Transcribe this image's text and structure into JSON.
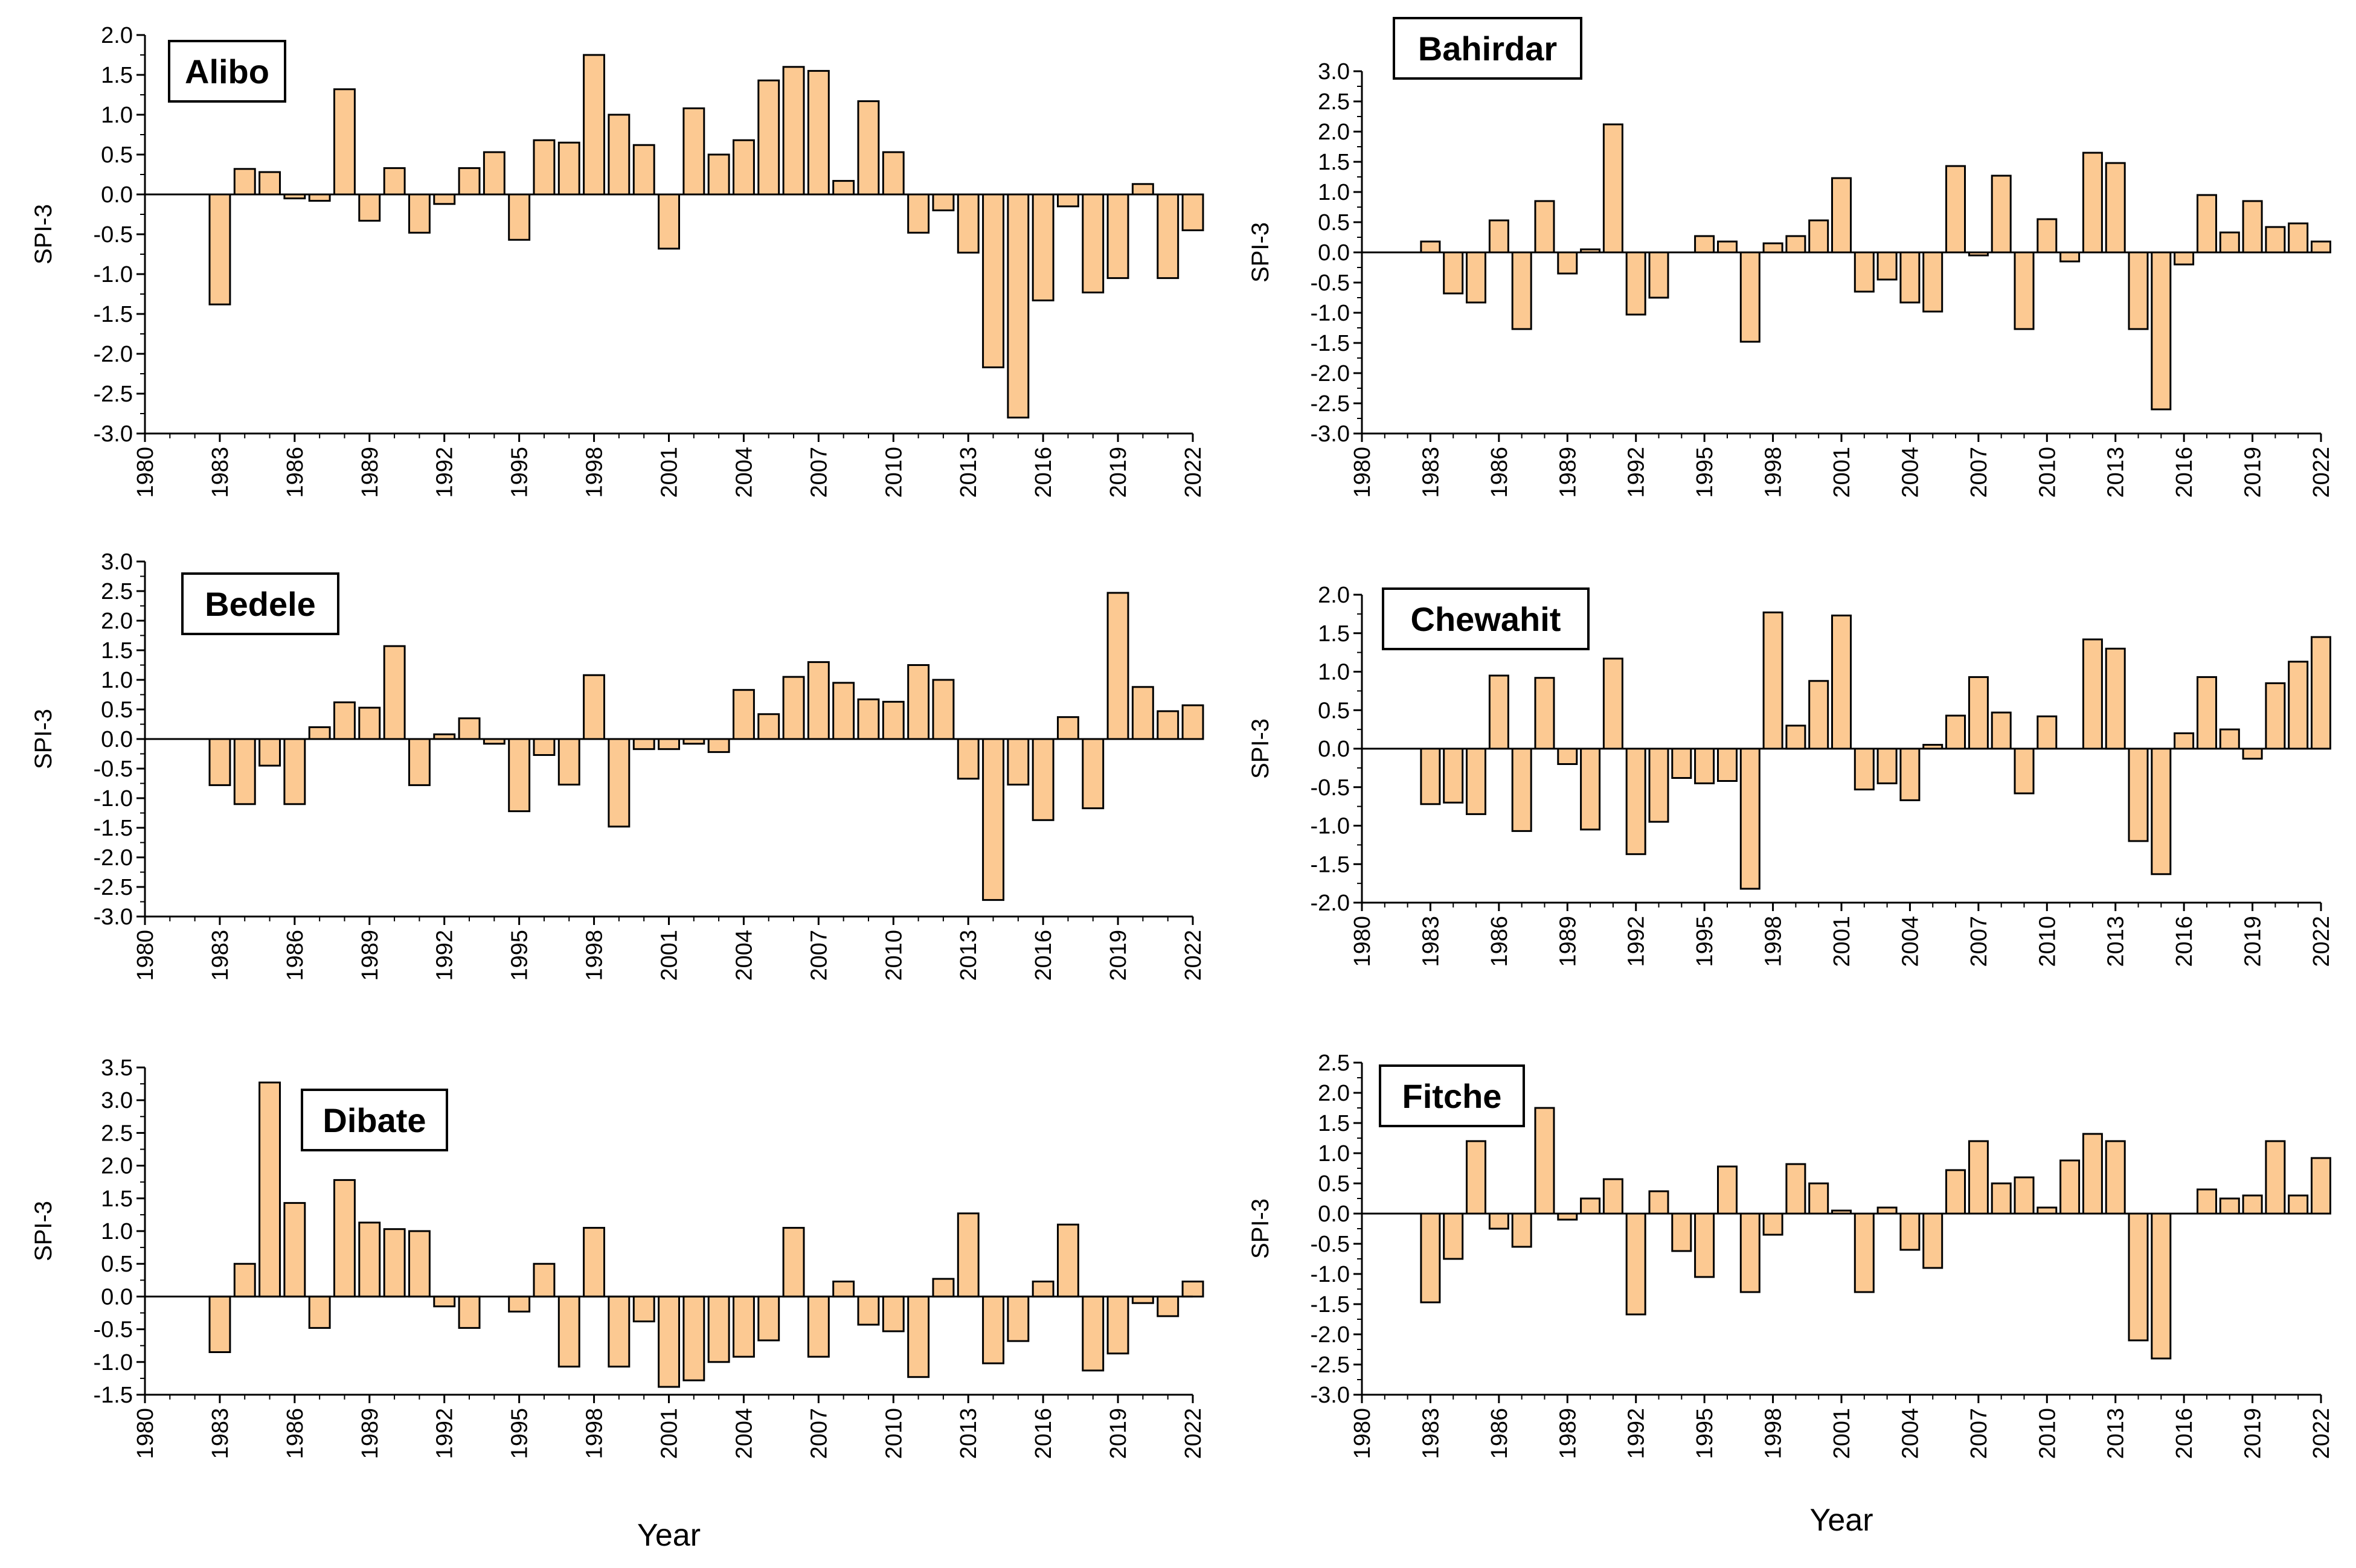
{
  "figure": {
    "bar_fill": "#fcc992",
    "bar_stroke": "#000000"
  },
  "chart_data": [
    {
      "type": "bar",
      "station": "Alibo",
      "ylabel": "SPI-3",
      "xlabel": "",
      "xlim": [
        1980,
        2022
      ],
      "ylim": [
        -3.0,
        2.0
      ],
      "yticks": [
        "-3.0",
        "-2.5",
        "-2.0",
        "-1.5",
        "-1.0",
        "-0.5",
        "0.0",
        "0.5",
        "1.0",
        "1.5",
        "2.0"
      ],
      "xticks": [
        "1980",
        "1983",
        "1986",
        "1989",
        "1992",
        "1995",
        "1998",
        "2001",
        "2004",
        "2007",
        "2010",
        "2013",
        "2016",
        "2019",
        "2022"
      ],
      "years": [
        1983,
        1984,
        1985,
        1986,
        1987,
        1988,
        1989,
        1990,
        1991,
        1992,
        1993,
        1994,
        1995,
        1996,
        1997,
        1998,
        1999,
        2000,
        2001,
        2002,
        2003,
        2004,
        2005,
        2006,
        2007,
        2008,
        2009,
        2010,
        2011,
        2012,
        2013,
        2014,
        2015,
        2016,
        2017,
        2018,
        2019,
        2020,
        2021,
        2022
      ],
      "values": [
        -1.38,
        0.32,
        0.28,
        -0.05,
        -0.08,
        1.32,
        -0.33,
        0.33,
        -0.48,
        -0.12,
        0.33,
        0.53,
        -0.57,
        0.68,
        0.65,
        1.75,
        1.0,
        0.62,
        -0.68,
        1.08,
        0.5,
        0.68,
        1.43,
        1.6,
        1.55,
        0.17,
        1.17,
        0.53,
        -0.48,
        -0.2,
        -0.73,
        -2.17,
        -2.8,
        -1.33,
        -0.15,
        -1.23,
        -1.05,
        0.13,
        -1.05,
        -0.45
      ]
    },
    {
      "type": "bar",
      "station": "Bahirdar",
      "ylabel": "SPI-3",
      "xlabel": "",
      "xlim": [
        1980,
        2022
      ],
      "ylim": [
        -3.0,
        3.0
      ],
      "yticks": [
        "-3.0",
        "-2.5",
        "-2.0",
        "-1.5",
        "-1.0",
        "-0.5",
        "0.0",
        "0.5",
        "1.0",
        "1.5",
        "2.0",
        "2.5",
        "3.0"
      ],
      "xticks": [
        "1980",
        "1983",
        "1986",
        "1989",
        "1992",
        "1995",
        "1998",
        "2001",
        "2004",
        "2007",
        "2010",
        "2013",
        "2016",
        "2019",
        "2022"
      ],
      "years": [
        1983,
        1984,
        1985,
        1986,
        1987,
        1988,
        1989,
        1990,
        1991,
        1992,
        1993,
        1994,
        1995,
        1996,
        1997,
        1998,
        1999,
        2000,
        2001,
        2002,
        2003,
        2004,
        2005,
        2006,
        2007,
        2008,
        2009,
        2010,
        2011,
        2012,
        2013,
        2014,
        2015,
        2016,
        2017,
        2018,
        2019,
        2020,
        2021,
        2022
      ],
      "values": [
        0.18,
        -0.68,
        -0.83,
        0.53,
        -1.27,
        0.85,
        -0.35,
        0.05,
        2.12,
        -1.03,
        -0.75,
        0.0,
        0.27,
        0.18,
        -1.48,
        0.15,
        0.27,
        0.53,
        1.23,
        -0.65,
        -0.45,
        -0.83,
        -0.98,
        1.43,
        -0.05,
        1.27,
        -1.27,
        0.55,
        -0.15,
        1.65,
        1.48,
        -1.27,
        -2.6,
        -0.2,
        0.95,
        0.33,
        0.85,
        0.42,
        0.48,
        0.18
      ]
    },
    {
      "type": "bar",
      "station": "Bedele",
      "ylabel": "SPI-3",
      "xlabel": "",
      "xlim": [
        1980,
        2022
      ],
      "ylim": [
        -3.0,
        3.0
      ],
      "yticks": [
        "-3.0",
        "-2.5",
        "-2.0",
        "-1.5",
        "-1.0",
        "-0.5",
        "0.0",
        "0.5",
        "1.0",
        "1.5",
        "2.0",
        "2.5",
        "3.0"
      ],
      "xticks": [
        "1980",
        "1983",
        "1986",
        "1989",
        "1992",
        "1995",
        "1998",
        "2001",
        "2004",
        "2007",
        "2010",
        "2013",
        "2016",
        "2019",
        "2022"
      ],
      "years": [
        1983,
        1984,
        1985,
        1986,
        1987,
        1988,
        1989,
        1990,
        1991,
        1992,
        1993,
        1994,
        1995,
        1996,
        1997,
        1998,
        1999,
        2000,
        2001,
        2002,
        2003,
        2004,
        2005,
        2006,
        2007,
        2008,
        2009,
        2010,
        2011,
        2012,
        2013,
        2014,
        2015,
        2016,
        2017,
        2018,
        2019,
        2020,
        2021,
        2022
      ],
      "values": [
        -0.78,
        -1.1,
        -0.45,
        -1.1,
        0.2,
        0.62,
        0.53,
        1.57,
        -0.78,
        0.08,
        0.35,
        -0.08,
        -1.22,
        -0.27,
        -0.77,
        1.08,
        -1.48,
        -0.17,
        -0.17,
        -0.08,
        -0.22,
        0.83,
        0.42,
        1.05,
        1.3,
        0.95,
        0.67,
        0.63,
        1.25,
        1.0,
        -0.67,
        -2.72,
        -0.77,
        -1.37,
        0.37,
        -1.17,
        2.47,
        0.88,
        0.47,
        0.57
      ]
    },
    {
      "type": "bar",
      "station": "Chewahit",
      "ylabel": "SPI-3",
      "xlabel": "",
      "xlim": [
        1980,
        2022
      ],
      "ylim": [
        -2.0,
        2.0
      ],
      "yticks": [
        "-2.0",
        "-1.5",
        "-1.0",
        "-0.5",
        "0.0",
        "0.5",
        "1.0",
        "1.5",
        "2.0"
      ],
      "xticks": [
        "1980",
        "1983",
        "1986",
        "1989",
        "1992",
        "1995",
        "1998",
        "2001",
        "2004",
        "2007",
        "2010",
        "2013",
        "2016",
        "2019",
        "2022"
      ],
      "years": [
        1983,
        1984,
        1985,
        1986,
        1987,
        1988,
        1989,
        1990,
        1991,
        1992,
        1993,
        1994,
        1995,
        1996,
        1997,
        1998,
        1999,
        2000,
        2001,
        2002,
        2003,
        2004,
        2005,
        2006,
        2007,
        2008,
        2009,
        2010,
        2011,
        2012,
        2013,
        2014,
        2015,
        2016,
        2017,
        2018,
        2019,
        2020,
        2021,
        2022
      ],
      "values": [
        -0.72,
        -0.7,
        -0.85,
        0.95,
        -1.07,
        0.92,
        -0.2,
        -1.05,
        1.17,
        -1.37,
        -0.95,
        -0.38,
        -0.45,
        -0.42,
        -1.82,
        1.77,
        0.3,
        0.88,
        1.73,
        -0.53,
        -0.45,
        -0.67,
        0.05,
        0.43,
        0.93,
        0.47,
        -0.58,
        0.42,
        0.0,
        1.42,
        1.3,
        -1.2,
        -1.63,
        0.2,
        0.93,
        0.25,
        -0.13,
        0.85,
        1.13,
        1.45
      ]
    },
    {
      "type": "bar",
      "station": "Dibate",
      "ylabel": "SPI-3",
      "xlabel": "Year",
      "xlim": [
        1980,
        2022
      ],
      "ylim": [
        -1.5,
        3.5
      ],
      "yticks": [
        "-1.5",
        "-1.0",
        "-0.5",
        "0.0",
        "0.5",
        "1.0",
        "1.5",
        "2.0",
        "2.5",
        "3.0",
        "3.5"
      ],
      "xticks": [
        "1980",
        "1983",
        "1986",
        "1989",
        "1992",
        "1995",
        "1998",
        "2001",
        "2004",
        "2007",
        "2010",
        "2013",
        "2016",
        "2019",
        "2022"
      ],
      "years": [
        1983,
        1984,
        1985,
        1986,
        1987,
        1988,
        1989,
        1990,
        1991,
        1992,
        1993,
        1994,
        1995,
        1996,
        1997,
        1998,
        1999,
        2000,
        2001,
        2002,
        2003,
        2004,
        2005,
        2006,
        2007,
        2008,
        2009,
        2010,
        2011,
        2012,
        2013,
        2014,
        2015,
        2016,
        2017,
        2018,
        2019,
        2020,
        2021,
        2022
      ],
      "values": [
        -0.85,
        0.5,
        3.27,
        1.43,
        -0.48,
        1.78,
        1.13,
        1.03,
        1.0,
        -0.15,
        -0.48,
        0.0,
        -0.23,
        0.5,
        -1.07,
        1.05,
        -1.07,
        -0.38,
        -1.38,
        -1.28,
        -1.0,
        -0.92,
        -0.67,
        1.05,
        -0.92,
        0.23,
        -0.43,
        -0.53,
        -1.23,
        0.27,
        1.27,
        -1.02,
        -0.68,
        0.23,
        1.1,
        -1.13,
        -0.87,
        -0.1,
        -0.3,
        0.23
      ]
    },
    {
      "type": "bar",
      "station": "Fitche",
      "ylabel": "SPI-3",
      "xlabel": "Year",
      "xlim": [
        1980,
        2022
      ],
      "ylim": [
        -3.0,
        2.5
      ],
      "yticks": [
        "-3.0",
        "-2.5",
        "-2.0",
        "-1.5",
        "-1.0",
        "-0.5",
        "0.0",
        "0.5",
        "1.0",
        "1.5",
        "2.0",
        "2.5"
      ],
      "xticks": [
        "1980",
        "1983",
        "1986",
        "1989",
        "1992",
        "1995",
        "1998",
        "2001",
        "2004",
        "2007",
        "2010",
        "2013",
        "2016",
        "2019",
        "2022"
      ],
      "years": [
        1983,
        1984,
        1985,
        1986,
        1987,
        1988,
        1989,
        1990,
        1991,
        1992,
        1993,
        1994,
        1995,
        1996,
        1997,
        1998,
        1999,
        2000,
        2001,
        2002,
        2003,
        2004,
        2005,
        2006,
        2007,
        2008,
        2009,
        2010,
        2011,
        2012,
        2013,
        2014,
        2015,
        2016,
        2017,
        2018,
        2019,
        2020,
        2021,
        2022
      ],
      "values": [
        -1.47,
        -0.75,
        1.2,
        -0.25,
        -0.55,
        1.75,
        -0.1,
        0.25,
        0.57,
        -1.67,
        0.37,
        -0.62,
        -1.05,
        0.78,
        -1.3,
        -0.35,
        0.82,
        0.5,
        0.05,
        -1.3,
        0.1,
        -0.6,
        -0.9,
        0.72,
        1.2,
        0.5,
        0.6,
        0.1,
        0.88,
        1.32,
        1.2,
        -2.1,
        -2.4,
        0.0,
        0.4,
        0.25,
        0.3,
        1.2,
        0.3,
        0.92
      ]
    }
  ]
}
